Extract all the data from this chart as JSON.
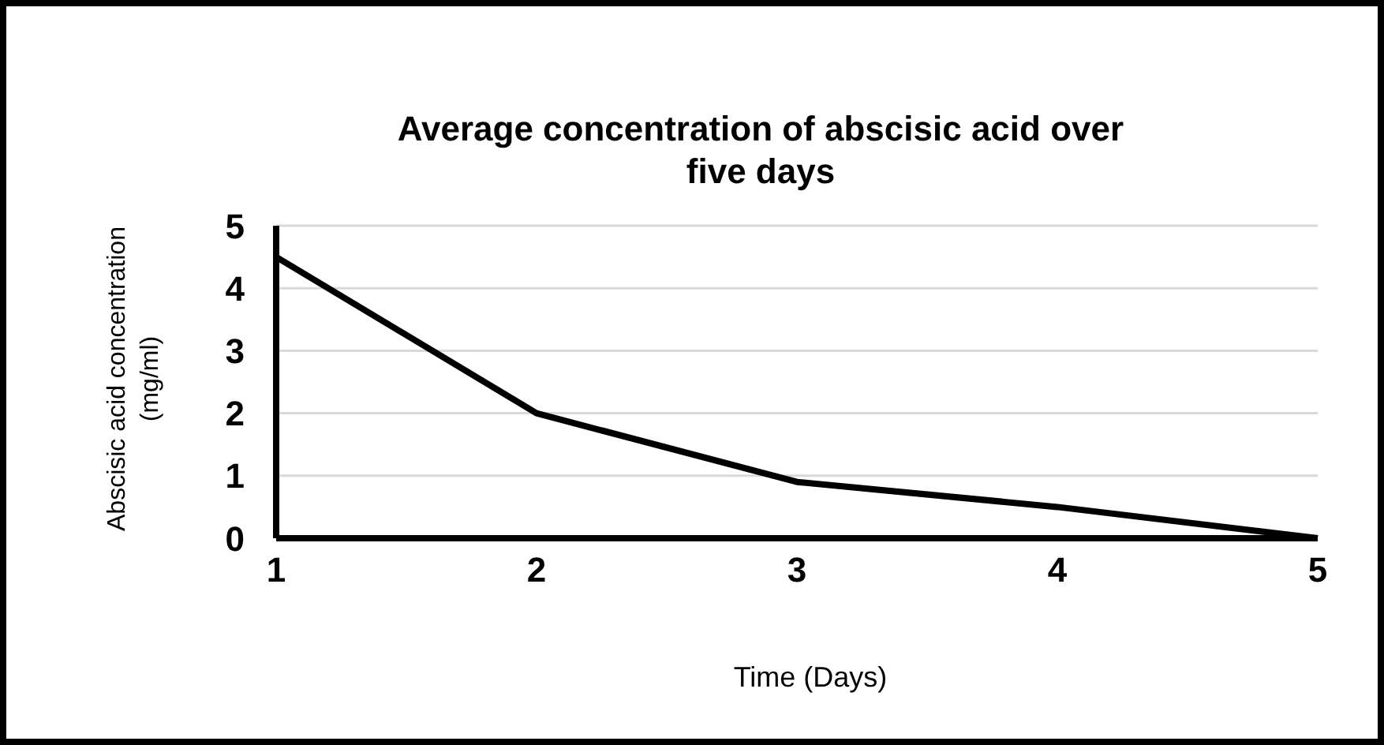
{
  "chart_data": {
    "type": "line",
    "title": "Average concentration of abscisic acid over five days",
    "xlabel": "Time (Days)",
    "ylabel": "Abscisic acid concentration (mg/ml)",
    "categories": [
      "1",
      "2",
      "3",
      "4",
      "5"
    ],
    "values": [
      4.5,
      2.0,
      0.9,
      0.5,
      0.0
    ],
    "color": "#000000",
    "ylim": [
      0,
      5
    ],
    "yticks": [
      0,
      1,
      2,
      3,
      4,
      5
    ],
    "grid": "y",
    "marker": "none",
    "line_style": "solid"
  }
}
